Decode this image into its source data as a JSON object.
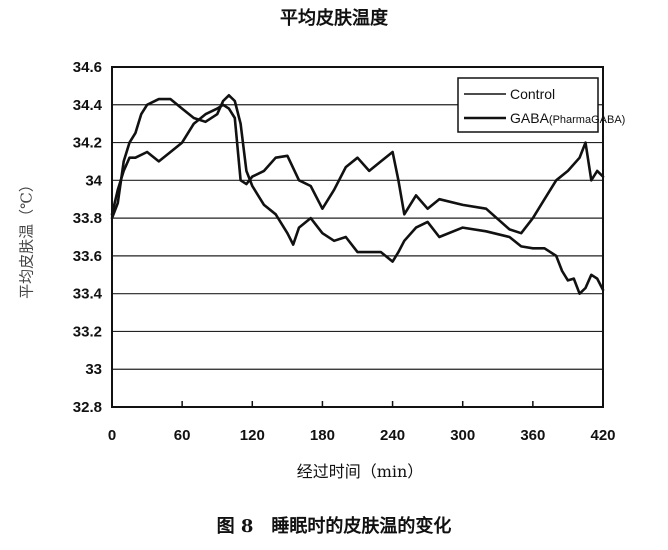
{
  "chart_data": {
    "type": "line",
    "title": "平均皮肤温度",
    "caption": "图 8　睡眠时的皮肤温的变化",
    "xlabel": "经过时间（min）",
    "ylabel": "平均皮肤温（℃）",
    "xlim": [
      0,
      420
    ],
    "ylim": [
      32.8,
      34.6
    ],
    "xticks": [
      0,
      60,
      120,
      180,
      240,
      300,
      360,
      420
    ],
    "yticks": [
      32.8,
      33,
      33.2,
      33.4,
      33.6,
      33.8,
      34,
      34.2,
      34.4,
      34.6
    ],
    "ytick_labels": [
      "32.8",
      "33",
      "33.2",
      "33.4",
      "33.6",
      "33.8",
      "34",
      "34.2",
      "34.4",
      "34.6"
    ],
    "grid": "horizontal",
    "legend_position": "top-right",
    "legend": [
      {
        "label": "Control"
      },
      {
        "label": "GABA",
        "sublabel": "(PharmaGABA)"
      }
    ],
    "series": [
      {
        "name": "Control",
        "color": "#111111",
        "x": [
          0,
          5,
          10,
          15,
          20,
          25,
          30,
          40,
          50,
          60,
          70,
          80,
          90,
          95,
          100,
          105,
          110,
          115,
          120,
          125,
          130,
          140,
          150,
          155,
          160,
          170,
          180,
          190,
          200,
          210,
          220,
          230,
          240,
          245,
          250,
          260,
          270,
          280,
          300,
          320,
          340,
          350,
          360,
          370,
          380,
          385,
          390,
          395,
          400,
          405,
          410,
          415,
          420
        ],
        "y": [
          33.8,
          33.88,
          34.1,
          34.2,
          34.25,
          34.35,
          34.4,
          34.43,
          34.43,
          34.38,
          34.33,
          34.31,
          34.35,
          34.42,
          34.45,
          34.42,
          34.3,
          34.05,
          33.97,
          33.92,
          33.87,
          33.82,
          33.72,
          33.66,
          33.75,
          33.8,
          33.72,
          33.68,
          33.7,
          33.62,
          33.62,
          33.62,
          33.57,
          33.62,
          33.68,
          33.75,
          33.78,
          33.7,
          33.75,
          33.73,
          33.7,
          33.65,
          33.64,
          33.64,
          33.6,
          33.52,
          33.47,
          33.48,
          33.4,
          33.43,
          33.5,
          33.48,
          33.42
        ]
      },
      {
        "name": "GABA(PharmaGABA)",
        "color": "#111111",
        "x": [
          0,
          5,
          10,
          15,
          20,
          30,
          40,
          50,
          60,
          70,
          80,
          90,
          95,
          100,
          105,
          110,
          115,
          120,
          130,
          140,
          150,
          160,
          170,
          180,
          190,
          200,
          210,
          220,
          230,
          240,
          245,
          250,
          260,
          270,
          280,
          300,
          320,
          340,
          350,
          360,
          370,
          380,
          390,
          400,
          405,
          410,
          415,
          420
        ],
        "y": [
          33.82,
          33.95,
          34.05,
          34.12,
          34.12,
          34.15,
          34.1,
          34.15,
          34.2,
          34.3,
          34.35,
          34.38,
          34.4,
          34.38,
          34.33,
          34.0,
          33.98,
          34.02,
          34.05,
          34.12,
          34.13,
          34.0,
          33.97,
          33.85,
          33.95,
          34.07,
          34.12,
          34.05,
          34.1,
          34.15,
          34.0,
          33.82,
          33.92,
          33.85,
          33.9,
          33.87,
          33.85,
          33.74,
          33.72,
          33.8,
          33.9,
          34.0,
          34.05,
          34.12,
          34.2,
          34.0,
          34.05,
          34.02
        ]
      }
    ]
  }
}
